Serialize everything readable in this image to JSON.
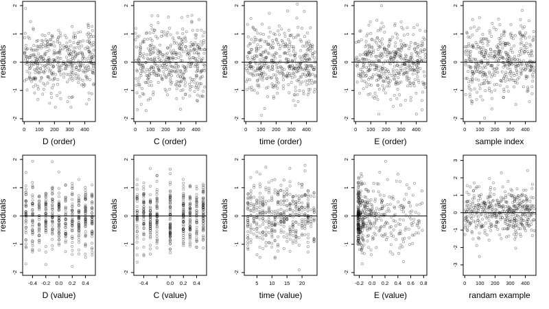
{
  "chart_data": [
    {
      "type": "scatter",
      "xlabel": "D (order)",
      "ylabel": "residuals",
      "xlim": [
        -10,
        470
      ],
      "ylim": [
        -2.1,
        2.15
      ],
      "xticks": [
        0,
        100,
        200,
        300,
        400
      ],
      "xtick_labels": [
        "0",
        "100",
        "200",
        "300",
        "400"
      ],
      "yticks": [
        -2,
        -1,
        0,
        1,
        2
      ],
      "ytick_labels": [
        "-2",
        "-1",
        "0",
        "1",
        "2"
      ],
      "reference_line_y": 0,
      "x_kind": "index",
      "x_span": [
        1,
        460
      ],
      "n_points": 440,
      "points_note": "dense cloud of ~440 residuals, most within [-1.2, 1.5], extremes near -1.9 and 2.0"
    },
    {
      "type": "scatter",
      "xlabel": "C (order)",
      "ylabel": "residuals",
      "xlim": [
        -10,
        470
      ],
      "ylim": [
        -2.1,
        2.15
      ],
      "xticks": [
        0,
        100,
        200,
        300,
        400
      ],
      "xtick_labels": [
        "0",
        "100",
        "200",
        "300",
        "400"
      ],
      "yticks": [
        -2,
        -1,
        0,
        1,
        2
      ],
      "ytick_labels": [
        "-2",
        "-1",
        "0",
        "1",
        "2"
      ],
      "reference_line_y": 0,
      "x_kind": "index",
      "x_span": [
        1,
        460
      ],
      "n_points": 440
    },
    {
      "type": "scatter",
      "xlabel": "time (order)",
      "ylabel": "residuals",
      "xlim": [
        -10,
        470
      ],
      "ylim": [
        -2.1,
        2.15
      ],
      "xticks": [
        0,
        100,
        200,
        300,
        400
      ],
      "xtick_labels": [
        "0",
        "100",
        "200",
        "300",
        "400"
      ],
      "yticks": [
        -2,
        -1,
        0,
        1,
        2
      ],
      "ytick_labels": [
        "-2",
        "-1",
        "0",
        "1",
        "2"
      ],
      "reference_line_y": 0,
      "x_kind": "index",
      "x_span": [
        1,
        460
      ],
      "n_points": 440
    },
    {
      "type": "scatter",
      "xlabel": "E (order)",
      "ylabel": "residuals",
      "xlim": [
        -10,
        470
      ],
      "ylim": [
        -2.1,
        2.15
      ],
      "xticks": [
        0,
        100,
        200,
        300,
        400
      ],
      "xtick_labels": [
        "0",
        "100",
        "200",
        "300",
        "400"
      ],
      "yticks": [
        -2,
        -1,
        0,
        1,
        2
      ],
      "ytick_labels": [
        "-2",
        "-1",
        "0",
        "1",
        "2"
      ],
      "reference_line_y": 0,
      "x_kind": "index",
      "x_span": [
        1,
        460
      ],
      "n_points": 440
    },
    {
      "type": "scatter",
      "xlabel": "sample index",
      "ylabel": "residuals",
      "xlim": [
        -10,
        470
      ],
      "ylim": [
        -2.1,
        2.15
      ],
      "xticks": [
        0,
        100,
        200,
        300,
        400
      ],
      "xtick_labels": [
        "0",
        "100",
        "200",
        "300",
        "400"
      ],
      "yticks": [
        -2,
        -1,
        0,
        1,
        2
      ],
      "ytick_labels": [
        "-2",
        "-1",
        "0",
        "1",
        "2"
      ],
      "reference_line_y": 0,
      "x_kind": "index",
      "x_span": [
        1,
        460
      ],
      "n_points": 440
    },
    {
      "type": "scatter",
      "xlabel": "D (value)",
      "ylabel": "residuals",
      "xlim": [
        -0.55,
        0.55
      ],
      "ylim": [
        -2.1,
        2.15
      ],
      "xticks": [
        -0.4,
        -0.2,
        0.0,
        0.2,
        0.4
      ],
      "xtick_labels": [
        "-0.4",
        "-0.2",
        "0.0",
        "0.2",
        "0.4"
      ],
      "yticks": [
        -2,
        -1,
        0,
        1,
        2
      ],
      "ytick_labels": [
        "-2",
        "-1",
        "0",
        "1",
        "2"
      ],
      "reference_line_y": 0,
      "x_kind": "discrete",
      "x_levels": [
        -0.5,
        -0.4,
        -0.3,
        -0.2,
        -0.1,
        0.0,
        0.1,
        0.2,
        0.3,
        0.4,
        0.5
      ],
      "n_points": 440
    },
    {
      "type": "scatter",
      "xlabel": "C (value)",
      "ylabel": "residuals",
      "xlim": [
        -0.55,
        0.55
      ],
      "ylim": [
        -2.1,
        2.15
      ],
      "xticks": [
        -0.4,
        -0.2,
        0.0,
        0.2,
        0.4
      ],
      "xtick_labels": [
        "-0.4",
        "",
        "0.0",
        "0.2",
        "0.4"
      ],
      "yticks": [
        -2,
        -1,
        0,
        1,
        2
      ],
      "ytick_labels": [
        "-2",
        "-1",
        "0",
        "1",
        "2"
      ],
      "reference_line_y": 0,
      "x_kind": "discrete",
      "x_levels": [
        -0.5,
        -0.4,
        -0.3,
        -0.2,
        0.0,
        0.2,
        0.3,
        0.4,
        0.5
      ],
      "n_points": 440
    },
    {
      "type": "scatter",
      "xlabel": "time (value)",
      "ylabel": "residuals",
      "xlim": [
        0.8,
        25
      ],
      "ylim": [
        -2.1,
        2.15
      ],
      "xticks": [
        5,
        10,
        15,
        20
      ],
      "xtick_labels": [
        "5",
        "10",
        "15",
        "20"
      ],
      "yticks": [
        -2,
        -1,
        0,
        1,
        2
      ],
      "ytick_labels": [
        "-2",
        "-1",
        "0",
        "1",
        "2"
      ],
      "reference_line_y": 0,
      "x_kind": "discrete",
      "x_levels": [
        2,
        3,
        4,
        5,
        6,
        7,
        8,
        9,
        10,
        11,
        12,
        13,
        14,
        15,
        16,
        17,
        18,
        19,
        20,
        21,
        22,
        23,
        24
      ],
      "n_points": 440
    },
    {
      "type": "scatter",
      "xlabel": "E (value)",
      "ylabel": "residuals",
      "xlim": [
        -0.28,
        0.85
      ],
      "ylim": [
        -2.1,
        2.15
      ],
      "xticks": [
        -0.2,
        0.0,
        0.2,
        0.4,
        0.6,
        0.8
      ],
      "xtick_labels": [
        "-0.2",
        "0.0",
        "0.2",
        "0.4",
        "0.6",
        "0.8"
      ],
      "yticks": [
        -2,
        -1,
        0,
        1,
        2
      ],
      "ytick_labels": [
        "-2",
        "-1",
        "0",
        "1",
        "2"
      ],
      "reference_line_y": 0,
      "x_kind": "skewed",
      "x_span": [
        -0.22,
        0.78
      ],
      "n_points": 440
    },
    {
      "type": "scatter",
      "xlabel": "randam example",
      "ylabel": "residuals",
      "xlim": [
        -10,
        470
      ],
      "ylim": [
        -3.6,
        3.3
      ],
      "xticks": [
        0,
        100,
        200,
        300,
        400
      ],
      "xtick_labels": [
        "0",
        "100",
        "200",
        "300",
        "400"
      ],
      "yticks": [
        -3,
        -2,
        -1,
        0,
        1,
        2,
        3
      ],
      "ytick_labels": [
        "-3",
        "-2",
        "-1",
        "0",
        "1",
        "2",
        "3"
      ],
      "reference_line_y": 0,
      "x_kind": "index",
      "x_span": [
        1,
        460
      ],
      "n_points": 440,
      "scale": 1.15
    }
  ]
}
